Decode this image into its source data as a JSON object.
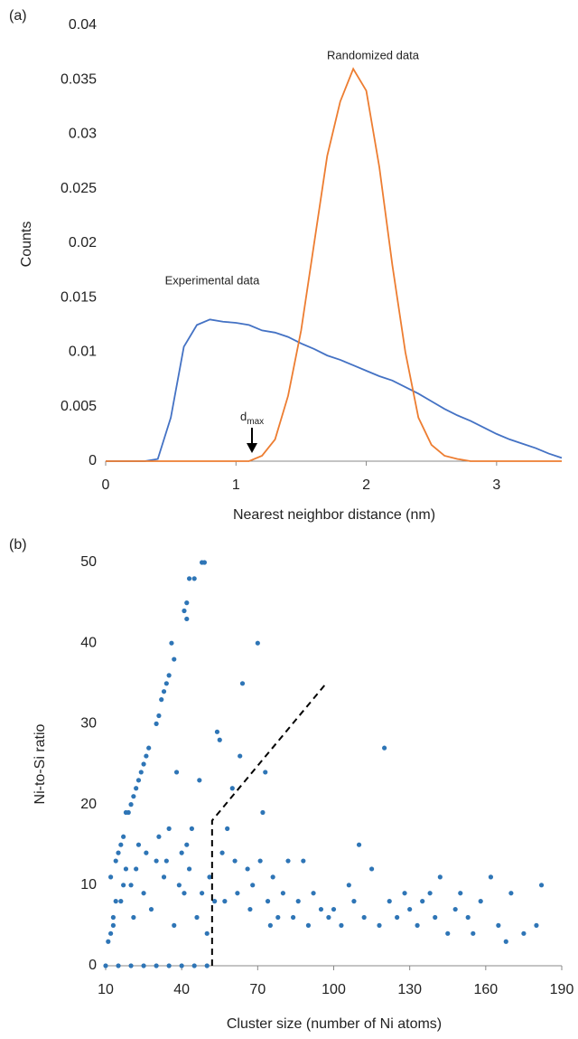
{
  "chart_data": [
    {
      "type": "line",
      "panel_label": "(a)",
      "x_label": "Nearest neighbor distance (nm)",
      "y_label": "Counts",
      "annotations": [
        "Experimental data",
        "Randomized data"
      ],
      "marker_label": {
        "text": "d",
        "subscript": "max"
      },
      "xlim": [
        0,
        3.5
      ],
      "xticks": [
        0,
        1,
        2,
        3
      ],
      "ylim": [
        0,
        0.04
      ],
      "yticks": [
        0,
        0.005,
        0.01,
        0.015,
        0.02,
        0.025,
        0.03,
        0.035,
        0.04
      ],
      "x": [
        0,
        0.1,
        0.2,
        0.3,
        0.4,
        0.5,
        0.6,
        0.7,
        0.8,
        0.9,
        1.0,
        1.1,
        1.2,
        1.3,
        1.4,
        1.5,
        1.6,
        1.7,
        1.8,
        1.9,
        2.0,
        2.1,
        2.2,
        2.3,
        2.4,
        2.5,
        2.6,
        2.7,
        2.8,
        2.9,
        3.0,
        3.1,
        3.2,
        3.3,
        3.4,
        3.5
      ],
      "series": [
        {
          "name": "Experimental data",
          "color": "#4472c4",
          "values": [
            0,
            0,
            0,
            0,
            0.0002,
            0.004,
            0.0105,
            0.0125,
            0.013,
            0.0128,
            0.0127,
            0.0125,
            0.012,
            0.0118,
            0.0114,
            0.0108,
            0.0103,
            0.0097,
            0.0093,
            0.0088,
            0.0083,
            0.0078,
            0.0074,
            0.0068,
            0.0062,
            0.0055,
            0.0048,
            0.0042,
            0.0037,
            0.0031,
            0.0025,
            0.002,
            0.0016,
            0.0012,
            0.0007,
            0.0003
          ]
        },
        {
          "name": "Randomized data",
          "color": "#ed7d31",
          "values": [
            0,
            0,
            0,
            0,
            0,
            0,
            0,
            0,
            0,
            0,
            0,
            0,
            0.0005,
            0.002,
            0.006,
            0.012,
            0.02,
            0.028,
            0.033,
            0.036,
            0.034,
            0.027,
            0.018,
            0.01,
            0.004,
            0.0015,
            0.0005,
            0.0002,
            0,
            0,
            0,
            0,
            0,
            0,
            0,
            0
          ]
        }
      ]
    },
    {
      "type": "scatter",
      "panel_label": "(b)",
      "x_label": "Cluster size (number of Ni atoms)",
      "y_label": "Ni-to-Si ratio",
      "xlim": [
        10,
        190
      ],
      "xticks": [
        10,
        40,
        70,
        100,
        130,
        160,
        190
      ],
      "ylim": [
        0,
        50
      ],
      "yticks": [
        0,
        10,
        20,
        30,
        40,
        50
      ],
      "color": "#2e75b6",
      "x": [
        12,
        13,
        14,
        15,
        16,
        17,
        18,
        19,
        20,
        21,
        22,
        23,
        24,
        25,
        26,
        27,
        30,
        31,
        32,
        33,
        34,
        35,
        36,
        37,
        42,
        42,
        43,
        45,
        48,
        49,
        41,
        11,
        12,
        13,
        14,
        16,
        17,
        18,
        20,
        21,
        22,
        23,
        25,
        26,
        28,
        30,
        31,
        33,
        34,
        35,
        37,
        38,
        39,
        40,
        41,
        42,
        43,
        44,
        46,
        47,
        48,
        50,
        51,
        53,
        54,
        55,
        56,
        57,
        58,
        60,
        61,
        62,
        63,
        64,
        66,
        67,
        68,
        70,
        71,
        72,
        73,
        74,
        75,
        76,
        78,
        80,
        82,
        84,
        86,
        88,
        90,
        92,
        95,
        98,
        100,
        103,
        106,
        108,
        110,
        112,
        115,
        118,
        120,
        122,
        125,
        128,
        130,
        133,
        135,
        138,
        140,
        142,
        145,
        148,
        150,
        153,
        155,
        158,
        162,
        165,
        168,
        170,
        175,
        180,
        182,
        10,
        15,
        20,
        25,
        30,
        35,
        40,
        45,
        50
      ],
      "values": [
        11,
        6,
        13,
        14,
        15,
        16,
        19,
        19,
        20,
        21,
        22,
        23,
        24,
        25,
        26,
        27,
        30,
        31,
        33,
        34,
        35,
        36,
        40,
        38,
        43,
        45,
        48,
        48,
        50,
        50,
        44,
        3,
        4,
        5,
        8,
        8,
        10,
        12,
        10,
        6,
        12,
        15,
        9,
        14,
        7,
        13,
        16,
        11,
        13,
        17,
        5,
        24,
        10,
        14,
        9,
        15,
        12,
        17,
        6,
        23,
        9,
        4,
        11,
        8,
        29,
        28,
        14,
        8,
        17,
        22,
        13,
        9,
        26,
        35,
        12,
        7,
        10,
        40,
        13,
        19,
        24,
        8,
        5,
        11,
        6,
        9,
        13,
        6,
        8,
        13,
        5,
        9,
        7,
        6,
        7,
        5,
        10,
        8,
        15,
        6,
        12,
        5,
        27,
        8,
        6,
        9,
        7,
        5,
        8,
        9,
        6,
        11,
        4,
        7,
        9,
        6,
        4,
        8,
        11,
        5,
        3,
        9,
        4,
        5,
        10,
        0,
        0,
        0,
        0,
        0,
        0,
        0,
        0,
        0
      ],
      "threshold_line": {
        "x": [
          52,
          52,
          97
        ],
        "y": [
          0,
          18,
          35
        ]
      }
    }
  ]
}
